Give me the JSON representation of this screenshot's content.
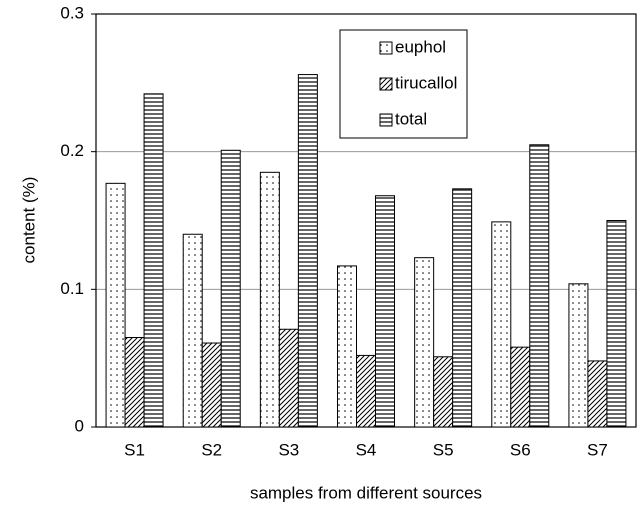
{
  "chart_data": {
    "type": "bar",
    "x_label": "samples from different sources",
    "y_label": "content (%)",
    "categories": [
      "S1",
      "S2",
      "S3",
      "S4",
      "S5",
      "S6",
      "S7"
    ],
    "series": [
      {
        "name": "euphol",
        "color": "#000000",
        "pattern": "dots",
        "values": [
          0.177,
          0.14,
          0.185,
          0.117,
          0.123,
          0.149,
          0.104
        ]
      },
      {
        "name": "tirucallol",
        "color": "#000000",
        "pattern": "hatch",
        "values": [
          0.065,
          0.061,
          0.071,
          0.052,
          0.051,
          0.058,
          0.048
        ]
      },
      {
        "name": "total",
        "color": "#000000",
        "pattern": "hlines",
        "values": [
          0.242,
          0.201,
          0.256,
          0.168,
          0.173,
          0.205,
          0.15
        ]
      }
    ],
    "ylim": [
      0,
      0.3
    ],
    "yticks": [
      0,
      0.1,
      0.2,
      0.3
    ],
    "grid": true,
    "legend": "upper right"
  }
}
